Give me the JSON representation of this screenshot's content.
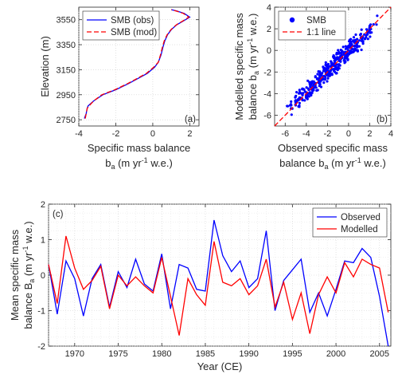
{
  "chart_data": [
    {
      "panel": "a",
      "panel_label": "(a)",
      "type": "line",
      "xlabel_line1": "Specific mass balance",
      "xlabel_line2": "b",
      "xlabel_line2_sub": "a",
      "xlabel_line2_rest": " (m yr",
      "xlabel_sup": "-1",
      "xlabel_end": " w.e.)",
      "ylabel": "Elevation (m)",
      "xlim": [
        -4,
        2.5
      ],
      "ylim": [
        2700,
        3650
      ],
      "xticks": [
        -4,
        -2,
        0,
        2
      ],
      "yticks": [
        2750,
        2950,
        3150,
        3350,
        3550
      ],
      "grid": true,
      "legend_position": "top-left",
      "series": [
        {
          "name": "SMB (obs)",
          "color": "#0000ff",
          "style": "solid",
          "x": [
            -3.7,
            -3.6,
            -3.55,
            -3.5,
            -3.2,
            -2.7,
            -2.0,
            -1.3,
            -0.8,
            -0.3,
            0.1,
            0.3,
            0.45,
            0.55,
            0.65,
            0.8,
            1.0,
            1.3,
            1.65,
            2.0,
            1.7,
            1.3,
            1.0
          ],
          "y": [
            2760,
            2800,
            2840,
            2860,
            2900,
            2950,
            2990,
            3040,
            3080,
            3120,
            3170,
            3210,
            3270,
            3330,
            3380,
            3430,
            3470,
            3510,
            3540,
            3570,
            3600,
            3620,
            3630
          ]
        },
        {
          "name": "SMB (mod)",
          "color": "#ff0000",
          "style": "dashed",
          "x": [
            -3.65,
            -3.6,
            -3.55,
            -3.45,
            -3.2,
            -2.75,
            -2.05,
            -1.35,
            -0.85,
            -0.35,
            0.05,
            0.3,
            0.42,
            0.52,
            0.62,
            0.78,
            0.98,
            1.28,
            1.62,
            1.95,
            1.65,
            1.25,
            1.0
          ],
          "y": [
            2760,
            2800,
            2840,
            2860,
            2900,
            2950,
            2990,
            3040,
            3080,
            3120,
            3170,
            3210,
            3270,
            3330,
            3380,
            3430,
            3470,
            3510,
            3540,
            3570,
            3600,
            3620,
            3630
          ]
        }
      ]
    },
    {
      "panel": "b",
      "panel_label": "(b)",
      "type": "scatter",
      "xlabel_line1": "Observed specific mass",
      "xlabel_line2": "balance b",
      "xlabel_line2_sub": "a",
      "xlabel_line2_rest": " (m yr",
      "xlabel_sup": "-1",
      "xlabel_end": " w.e.)",
      "ylabel_line1": "Modelled specific mass",
      "ylabel_line2": "balance b",
      "ylabel_line2_sub": "a",
      "ylabel_line2_rest": " (m yr",
      "ylabel_sup": "-1",
      "ylabel_end": " w.e.)",
      "xlim": [
        -7,
        4
      ],
      "ylim": [
        -7,
        4
      ],
      "xticks": [
        -6,
        -4,
        -2,
        0,
        2,
        4
      ],
      "yticks": [
        -6,
        -4,
        -2,
        0,
        2,
        4
      ],
      "grid": true,
      "legend_position": "top-left",
      "series": [
        {
          "name": "SMB",
          "color": "#0000ff",
          "marker": "dot",
          "count": 400,
          "x_range": [
            -6.1,
            3.2
          ],
          "y_noise": 0.6
        },
        {
          "name": "1:1 line",
          "color": "#ff0000",
          "style": "dashed",
          "x": [
            -7,
            4
          ],
          "y": [
            -7,
            4
          ]
        }
      ]
    },
    {
      "panel": "c",
      "panel_label": "(c)",
      "type": "line",
      "xlabel": "Year (CE)",
      "ylabel_line1": "Mean specific mass",
      "ylabel_line2": "balance B",
      "ylabel_line2_sub": "a",
      "ylabel_line2_rest": " (m yr",
      "ylabel_sup": "-1",
      "ylabel_end": " w.e.)",
      "xlim": [
        1967,
        2006.3
      ],
      "ylim": [
        -2,
        2
      ],
      "xticks": [
        1970,
        1975,
        1980,
        1985,
        1990,
        1995,
        2000,
        2005
      ],
      "yticks": [
        -2,
        -1,
        0,
        1,
        2
      ],
      "grid": true,
      "legend_position": "top-right",
      "x": [
        1967,
        1968,
        1969,
        1970,
        1971,
        1972,
        1973,
        1974,
        1975,
        1976,
        1977,
        1978,
        1979,
        1980,
        1981,
        1982,
        1983,
        1984,
        1985,
        1986,
        1987,
        1988,
        1989,
        1990,
        1991,
        1992,
        1993,
        1994,
        1995,
        1996,
        1997,
        1998,
        1999,
        2000,
        2001,
        2002,
        2003,
        2004,
        2005,
        2006
      ],
      "series": [
        {
          "name": "Observed",
          "color": "#0000ff",
          "values": [
            0.3,
            -1.1,
            0.4,
            -0.1,
            -1.15,
            -0.1,
            0.3,
            -0.9,
            0.1,
            -0.35,
            0.45,
            -0.25,
            -0.45,
            0.6,
            -0.95,
            0.3,
            0.2,
            -0.4,
            -0.45,
            1.55,
            0.55,
            0.1,
            0.4,
            -0.35,
            -0.1,
            1.25,
            -1.0,
            -0.15,
            0.15,
            0.45,
            -1.05,
            -0.5,
            -1.15,
            -0.4,
            0.4,
            0.35,
            0.75,
            0.5,
            -0.6,
            -2.0
          ]
        },
        {
          "name": "Modelled",
          "color": "#ff0000",
          "values": [
            0.3,
            -0.8,
            1.1,
            0.2,
            -0.4,
            -0.15,
            0.25,
            -0.95,
            0.0,
            -0.3,
            -0.05,
            -0.3,
            -0.5,
            0.5,
            -0.6,
            -1.7,
            -0.1,
            -0.55,
            -0.85,
            0.95,
            -0.2,
            -0.3,
            -0.1,
            -0.55,
            -0.3,
            0.45,
            -0.9,
            -0.2,
            -1.25,
            -0.5,
            -1.65,
            -0.55,
            -0.05,
            -0.5,
            0.35,
            -0.05,
            0.45,
            0.3,
            0.2,
            -1.05
          ]
        }
      ]
    }
  ]
}
